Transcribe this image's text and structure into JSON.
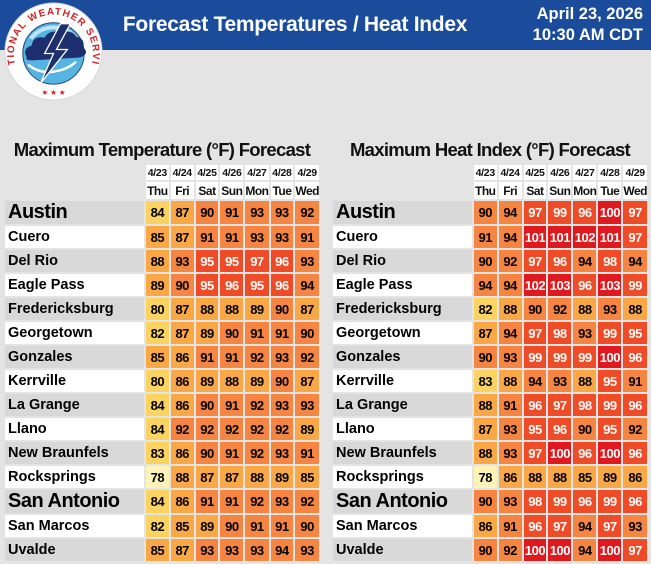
{
  "header": {
    "title": "Forecast Temperatures / Heat Index",
    "date": "April 23, 2026",
    "time": "10:30 AM CDT",
    "bar_color": "#1B4C9C",
    "logo": {
      "ring_text": "NATIONAL WEATHER SERVICE",
      "stars": "★ ★ ★"
    }
  },
  "colors": {
    "page_bg": "#E4E4E4",
    "header_blue": "#1B4C9C",
    "label_gray": "#D8D8D8",
    "label_white": "#FFFFFF",
    "scale": [
      {
        "max": 79,
        "bg": "#FFF3B8",
        "fg": "#000000"
      },
      {
        "max": 84,
        "bg": "#FBD360",
        "fg": "#000000"
      },
      {
        "max": 89,
        "bg": "#F9A845",
        "fg": "#000000"
      },
      {
        "max": 94,
        "bg": "#F58540",
        "fg": "#000000"
      },
      {
        "max": 99,
        "bg": "#EF4B27",
        "fg": "#FFFFFF"
      },
      {
        "max": 999,
        "bg": "#E0191F",
        "fg": "#FFFFFF"
      }
    ]
  },
  "large_label_cities": [
    "Austin",
    "San Antonio"
  ],
  "chart_data": [
    {
      "type": "heatmap",
      "title": "Maximum Temperature (°F) Forecast",
      "columns": [
        {
          "date": "4/23",
          "day": "Thu"
        },
        {
          "date": "4/24",
          "day": "Fri"
        },
        {
          "date": "4/25",
          "day": "Sat"
        },
        {
          "date": "4/26",
          "day": "Sun"
        },
        {
          "date": "4/27",
          "day": "Mon"
        },
        {
          "date": "4/28",
          "day": "Tue"
        },
        {
          "date": "4/29",
          "day": "Wed"
        }
      ],
      "rows": [
        {
          "city": "Austin",
          "values": [
            84,
            87,
            90,
            91,
            93,
            93,
            92
          ]
        },
        {
          "city": "Cuero",
          "values": [
            85,
            87,
            91,
            91,
            93,
            93,
            91
          ]
        },
        {
          "city": "Del Rio",
          "values": [
            88,
            93,
            95,
            95,
            97,
            96,
            93
          ]
        },
        {
          "city": "Eagle Pass",
          "values": [
            89,
            90,
            95,
            96,
            95,
            96,
            94
          ]
        },
        {
          "city": "Fredericksburg",
          "values": [
            80,
            87,
            88,
            88,
            89,
            90,
            87
          ]
        },
        {
          "city": "Georgetown",
          "values": [
            82,
            87,
            89,
            90,
            91,
            91,
            90
          ]
        },
        {
          "city": "Gonzales",
          "values": [
            85,
            86,
            91,
            91,
            92,
            93,
            92
          ]
        },
        {
          "city": "Kerrville",
          "values": [
            80,
            86,
            89,
            88,
            89,
            90,
            87
          ]
        },
        {
          "city": "La Grange",
          "values": [
            84,
            86,
            90,
            91,
            92,
            93,
            93
          ]
        },
        {
          "city": "Llano",
          "values": [
            84,
            92,
            92,
            92,
            92,
            92,
            89
          ]
        },
        {
          "city": "New Braunfels",
          "values": [
            83,
            86,
            90,
            91,
            92,
            93,
            91
          ]
        },
        {
          "city": "Rocksprings",
          "values": [
            78,
            88,
            87,
            87,
            88,
            89,
            85
          ]
        },
        {
          "city": "San Antonio",
          "values": [
            84,
            86,
            91,
            91,
            92,
            93,
            92
          ]
        },
        {
          "city": "San Marcos",
          "values": [
            82,
            85,
            89,
            90,
            91,
            91,
            90
          ]
        },
        {
          "city": "Uvalde",
          "values": [
            85,
            87,
            93,
            93,
            93,
            94,
            93
          ]
        }
      ]
    },
    {
      "type": "heatmap",
      "title": "Maximum Heat Index (°F) Forecast",
      "columns": [
        {
          "date": "4/23",
          "day": "Thu"
        },
        {
          "date": "4/24",
          "day": "Fri"
        },
        {
          "date": "4/25",
          "day": "Sat"
        },
        {
          "date": "4/26",
          "day": "Sun"
        },
        {
          "date": "4/27",
          "day": "Mon"
        },
        {
          "date": "4/28",
          "day": "Tue"
        },
        {
          "date": "4/29",
          "day": "Wed"
        }
      ],
      "rows": [
        {
          "city": "Austin",
          "values": [
            90,
            94,
            97,
            99,
            96,
            100,
            97
          ]
        },
        {
          "city": "Cuero",
          "values": [
            91,
            94,
            101,
            101,
            102,
            101,
            97
          ]
        },
        {
          "city": "Del Rio",
          "values": [
            90,
            92,
            97,
            96,
            94,
            98,
            94
          ]
        },
        {
          "city": "Eagle Pass",
          "values": [
            94,
            94,
            102,
            103,
            96,
            103,
            99
          ]
        },
        {
          "city": "Fredericksburg",
          "values": [
            82,
            88,
            90,
            92,
            88,
            93,
            88
          ]
        },
        {
          "city": "Georgetown",
          "values": [
            87,
            94,
            97,
            98,
            93,
            99,
            95
          ]
        },
        {
          "city": "Gonzales",
          "values": [
            90,
            93,
            99,
            99,
            99,
            100,
            96
          ]
        },
        {
          "city": "Kerrville",
          "values": [
            83,
            88,
            94,
            93,
            88,
            95,
            91
          ]
        },
        {
          "city": "La Grange",
          "values": [
            88,
            91,
            96,
            97,
            98,
            99,
            96
          ]
        },
        {
          "city": "Llano",
          "values": [
            87,
            93,
            95,
            96,
            90,
            95,
            92
          ]
        },
        {
          "city": "New Braunfels",
          "values": [
            88,
            93,
            97,
            100,
            96,
            100,
            96
          ]
        },
        {
          "city": "Rocksprings",
          "values": [
            78,
            86,
            88,
            88,
            85,
            89,
            86
          ]
        },
        {
          "city": "San Antonio",
          "values": [
            90,
            93,
            98,
            99,
            96,
            99,
            96
          ]
        },
        {
          "city": "San Marcos",
          "values": [
            86,
            91,
            96,
            97,
            94,
            97,
            93
          ]
        },
        {
          "city": "Uvalde",
          "values": [
            90,
            92,
            100,
            100,
            94,
            100,
            97
          ]
        }
      ]
    }
  ]
}
